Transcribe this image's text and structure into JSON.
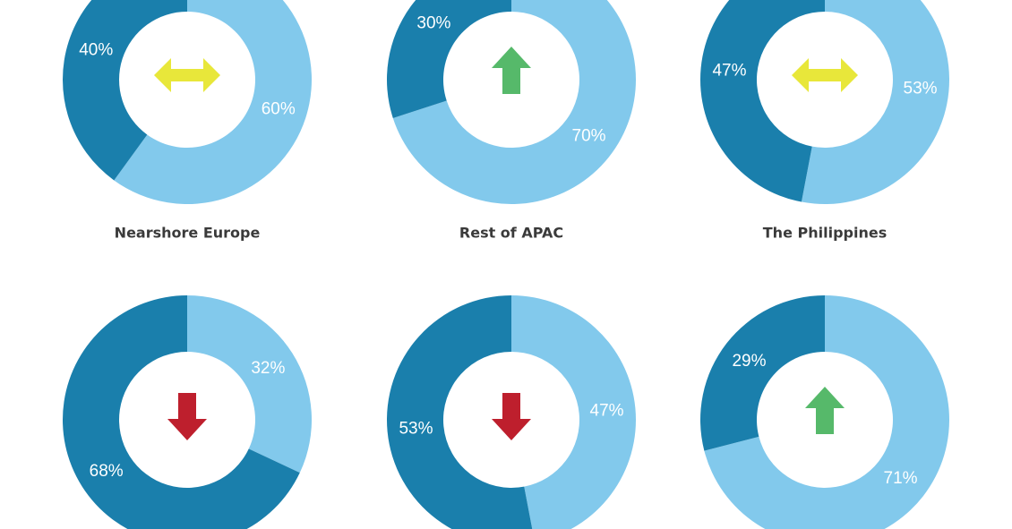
{
  "colors": {
    "dark": "#1a7fac",
    "light": "#82c9ec",
    "neutral": "#e8e73a",
    "up": "#56b96a",
    "down": "#be1f2d"
  },
  "chart_data": [
    {
      "type": "pie",
      "title": "Nearshore Europe",
      "trend": "neutral",
      "slices": [
        {
          "value": 60,
          "label": "60%",
          "shade": "light"
        },
        {
          "value": 40,
          "label": "40%",
          "shade": "dark"
        }
      ]
    },
    {
      "type": "pie",
      "title": "Rest of APAC",
      "trend": "up",
      "slices": [
        {
          "value": 70,
          "label": "70%",
          "shade": "light"
        },
        {
          "value": 30,
          "label": "30%",
          "shade": "dark"
        }
      ]
    },
    {
      "type": "pie",
      "title": "The Philippines",
      "trend": "neutral",
      "slices": [
        {
          "value": 53,
          "label": "53%",
          "shade": "light"
        },
        {
          "value": 47,
          "label": "47%",
          "shade": "dark"
        }
      ]
    },
    {
      "type": "pie",
      "title": "",
      "trend": "down",
      "slices": [
        {
          "value": 32,
          "label": "32%",
          "shade": "light"
        },
        {
          "value": 68,
          "label": "68%",
          "shade": "dark"
        }
      ]
    },
    {
      "type": "pie",
      "title": "",
      "trend": "down",
      "slices": [
        {
          "value": 47,
          "label": "47%",
          "shade": "light"
        },
        {
          "value": 53,
          "label": "53%",
          "shade": "dark"
        }
      ]
    },
    {
      "type": "pie",
      "title": "",
      "trend": "up",
      "slices": [
        {
          "value": 71,
          "label": "71%",
          "shade": "light"
        },
        {
          "value": 29,
          "label": "29%",
          "shade": "dark"
        }
      ]
    }
  ]
}
